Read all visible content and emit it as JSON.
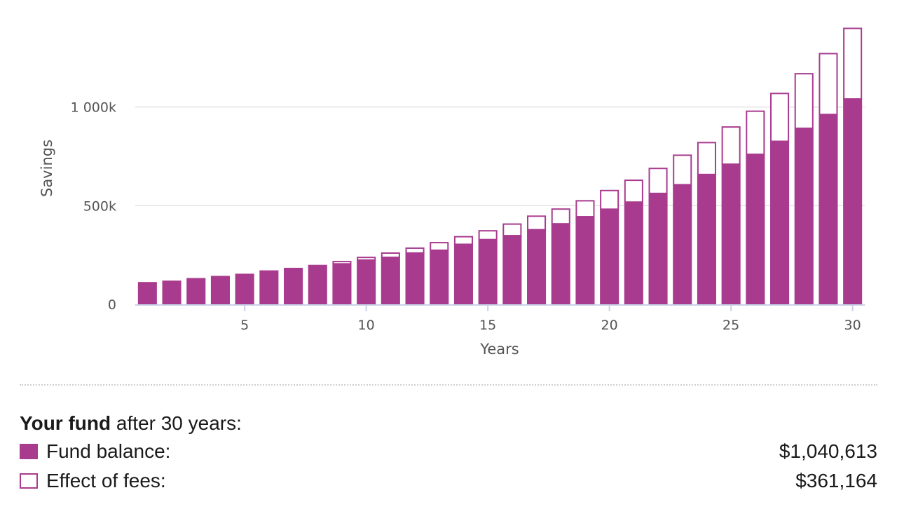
{
  "colors": {
    "fund": "#a83b8e",
    "fees_fill": "#ffffff",
    "fees_border": "#a83b8e",
    "grid": "#e4e4e4",
    "axis": "#c8d2e6"
  },
  "chart_data": {
    "type": "bar",
    "stacked": true,
    "title": "",
    "xlabel": "Years",
    "ylabel": "Savings",
    "ylim": [
      0,
      1400000
    ],
    "yticks": [
      0,
      500000,
      1000000
    ],
    "ytick_labels": [
      "0",
      "500k",
      "1 000k"
    ],
    "xticks": [
      5,
      10,
      15,
      20,
      25,
      30
    ],
    "xtick_labels": [
      "5",
      "10",
      "15",
      "20",
      "25",
      "30"
    ],
    "grid": true,
    "x": [
      1,
      2,
      3,
      4,
      5,
      6,
      7,
      8,
      9,
      10,
      11,
      12,
      13,
      14,
      15,
      16,
      17,
      18,
      19,
      20,
      21,
      22,
      23,
      24,
      25,
      26,
      27,
      28,
      29,
      30
    ],
    "series": [
      {
        "name": "Fund balance",
        "values": [
          113000,
          120000,
          133000,
          144000,
          155000,
          172000,
          175000,
          190000,
          205000,
          224000,
          238000,
          260000,
          274000,
          304000,
          328000,
          348000,
          378000,
          408000,
          444000,
          482000,
          518000,
          562000,
          606000,
          658000,
          710000,
          760000,
          826000,
          892000,
          962000,
          1040613
        ]
      },
      {
        "name": "Effect of fees",
        "values": [
          0,
          0,
          0,
          0,
          0,
          0,
          10000,
          10000,
          15000,
          17000,
          25000,
          28000,
          42000,
          42000,
          48000,
          62000,
          72000,
          78000,
          84000,
          98000,
          114000,
          130000,
          153000,
          165000,
          192000,
          222000,
          246000,
          280000,
          312000,
          361164
        ]
      }
    ]
  },
  "summary": {
    "title_bold": "Your fund",
    "title_rest": " after 30 years:",
    "fund_label": "Fund balance:",
    "fund_value": "$1,040,613",
    "fees_label": "Effect of fees:",
    "fees_value": "$361,164"
  }
}
